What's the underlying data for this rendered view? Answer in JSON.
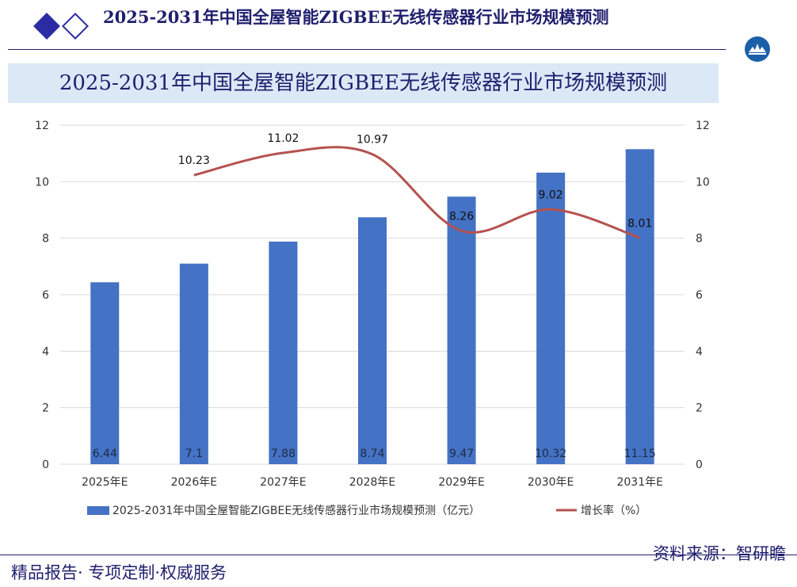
{
  "header": {
    "title": "2025-2031年中国全屋智能ZIGBEE无线传感器行业市场规模预测"
  },
  "colors": {
    "bar": "#4472c4",
    "line": "#b5524f",
    "title_band": "#dbe9f7",
    "brand": "#1f1f6e",
    "grid": "#d9d9d9"
  },
  "chart_data": {
    "type": "bar",
    "title": "2025-2031年中国全屋智能ZIGBEE无线传感器行业市场规模预测",
    "categories": [
      "2025年E",
      "2026年E",
      "2027年E",
      "2028年E",
      "2029年E",
      "2030年E",
      "2031年E"
    ],
    "ylim": [
      0,
      12
    ],
    "y2lim": [
      0,
      12
    ],
    "yticks": [
      "0",
      "2",
      "4",
      "6",
      "8",
      "10",
      "12"
    ],
    "y2ticks": [
      "0",
      "2",
      "4",
      "6",
      "8",
      "10",
      "12"
    ],
    "grid": true,
    "legend_position": "bottom",
    "series": [
      {
        "name": "2025-2031年中国全屋智能ZIGBEE无线传感器行业市场规模预测（亿元）",
        "type": "bar",
        "axis": "left",
        "values": [
          6.44,
          7.1,
          7.88,
          8.74,
          9.47,
          10.32,
          11.15
        ],
        "labels": [
          "6.44",
          "7.1",
          "7.88",
          "8.74",
          "9.47",
          "10.32",
          "11.15"
        ]
      },
      {
        "name": "增长率（%）",
        "type": "line",
        "axis": "right",
        "values": [
          null,
          10.23,
          11.02,
          10.97,
          8.26,
          9.02,
          8.01
        ],
        "labels": [
          "",
          "10.23",
          "11.02",
          "10.97",
          "8.26",
          "9.02",
          "8.01"
        ]
      }
    ]
  },
  "footer": {
    "left": "精品报告· 专项定制·权威服务",
    "right": "资料来源：智研瞻"
  }
}
